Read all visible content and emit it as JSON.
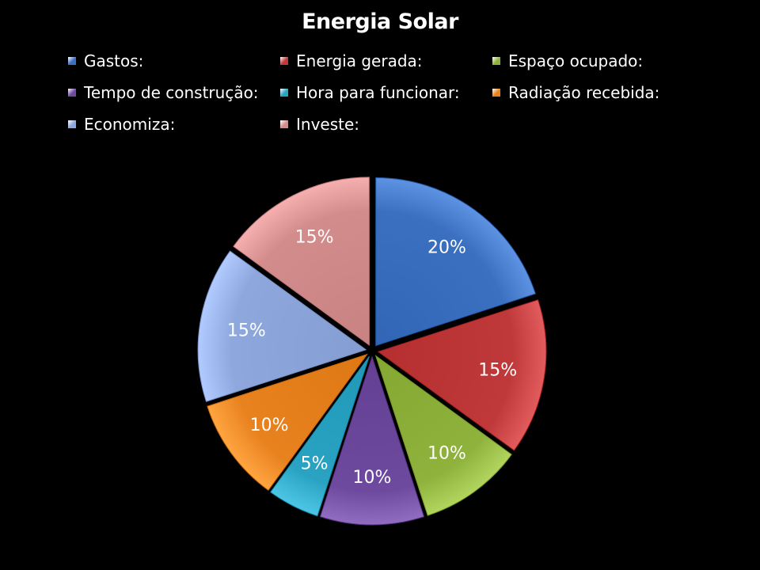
{
  "chart_data": {
    "type": "pie",
    "title": "Energia Solar",
    "legend_position": "top",
    "slices": [
      {
        "label": "Gastos:",
        "value": 20,
        "display": "20%",
        "color": "#3b6fbf"
      },
      {
        "label": "Energia gerada:",
        "value": 15,
        "display": "15%",
        "color": "#c0393a"
      },
      {
        "label": "Espaço ocupado:",
        "value": 10,
        "display": "10%",
        "color": "#8fb23c"
      },
      {
        "label": "Tempo de construção:",
        "value": 10,
        "display": "10%",
        "color": "#6e4a9e"
      },
      {
        "label": "Hora para funcionar:",
        "value": 5,
        "display": "5%",
        "color": "#2aa3c2"
      },
      {
        "label": "Radiação recebida:",
        "value": 10,
        "display": "10%",
        "color": "#e8821e"
      },
      {
        "label": "Economiza:",
        "value": 15,
        "display": "15%",
        "color": "#8ea8de"
      },
      {
        "label": "Investe:",
        "value": 15,
        "display": "15%",
        "color": "#d38c8c"
      }
    ]
  }
}
